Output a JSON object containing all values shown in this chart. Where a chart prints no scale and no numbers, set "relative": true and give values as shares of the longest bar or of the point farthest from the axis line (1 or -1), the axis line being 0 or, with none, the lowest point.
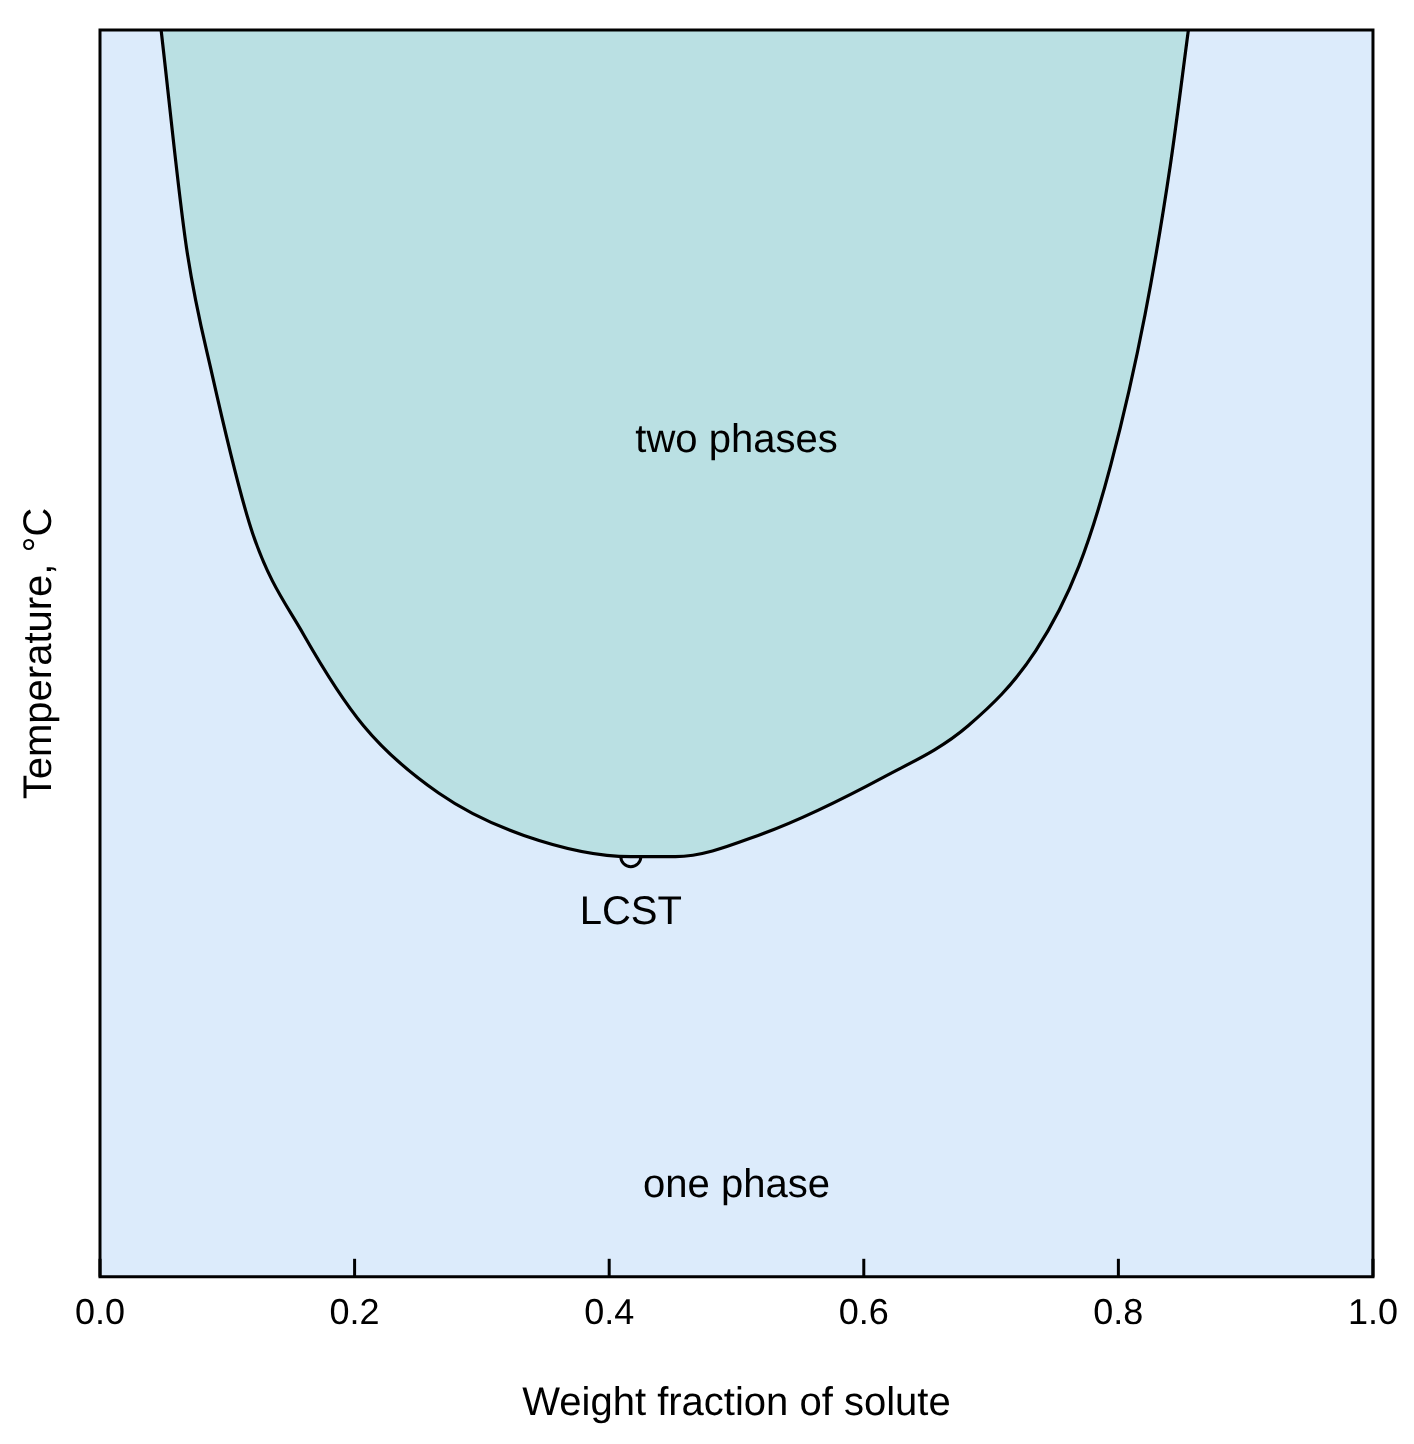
{
  "chart_data": {
    "type": "area",
    "xlabel": "Weight fraction of solute",
    "ylabel": "Temperature, °C",
    "relative": true,
    "xlim": [
      0,
      1
    ],
    "xticks": [
      {
        "value": 0,
        "label": "0.0"
      },
      {
        "value": 0.2,
        "label": "0.2"
      },
      {
        "value": 0.4,
        "label": "0.4"
      },
      {
        "value": 0.6,
        "label": "0.6"
      },
      {
        "value": 0.8,
        "label": "0.8"
      },
      {
        "value": 1,
        "label": "1.0"
      }
    ],
    "series": [
      {
        "color": "#bae0e3",
        "x": [
          0.048,
          0.068,
          0.088,
          0.12,
          0.16,
          0.207,
          0.266,
          0.333,
          0.417,
          0.452,
          0.517,
          0.616,
          0.682,
          0.735,
          0.769,
          0.794,
          0.821,
          0.841,
          0.855
        ],
        "values": [
          1.0,
          0.825,
          0.724,
          0.596,
          0.515,
          0.442,
          0.388,
          0.354,
          0.337,
          0.337,
          0.354,
          0.401,
          0.442,
          0.502,
          0.57,
          0.651,
          0.772,
          0.893,
          1.0
        ]
      },
      {
        "type": "scatter",
        "color": "#000000",
        "marker": "circle",
        "x": [
          0.417
        ],
        "values": [
          0.337
        ]
      }
    ],
    "bands": [
      {
        "axis": "x",
        "from": 0,
        "to": 1,
        "label": "one phase",
        "color": "#dcebfb"
      }
    ],
    "annotations": [
      "two phases",
      {
        "text": "LCST",
        "x": 0.417,
        "y": 0.337
      }
    ]
  }
}
